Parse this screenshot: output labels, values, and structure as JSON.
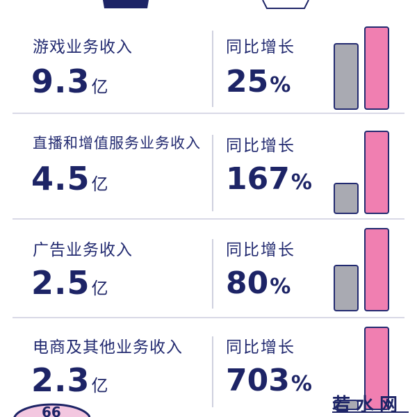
{
  "chart_data": {
    "type": "bar",
    "categories": [
      "游戏业务收入",
      "直播和增值服务业务收入",
      "广告业务收入",
      "电商及其他业务收入"
    ],
    "values": [
      9.3,
      4.5,
      2.5,
      2.3
    ],
    "value_unit": "亿",
    "growth_label": "同比增长",
    "growth": [
      25,
      167,
      80,
      703
    ],
    "growth_unit": "%",
    "rows": [
      {
        "label": "游戏业务收入",
        "value": "9.3",
        "unit": "亿",
        "yoy_label": "同比增长",
        "yoy": "25",
        "pct": "%"
      },
      {
        "label": "直播和增值服务业务收入",
        "value": "4.5",
        "unit": "亿",
        "yoy_label": "同比增长",
        "yoy": "167",
        "pct": "%"
      },
      {
        "label": "广告业务收入",
        "value": "2.5",
        "unit": "亿",
        "yoy_label": "同比增长",
        "yoy": "80",
        "pct": "%"
      },
      {
        "label": "电商及其他业务收入",
        "value": "2.3",
        "unit": "亿",
        "yoy_label": "同比增长",
        "yoy": "703",
        "pct": "%"
      }
    ],
    "colors": {
      "previous_year": "#a9aab2",
      "current_year": "#f07fb1",
      "outline": "#222a70"
    }
  },
  "watermark": "若水网"
}
